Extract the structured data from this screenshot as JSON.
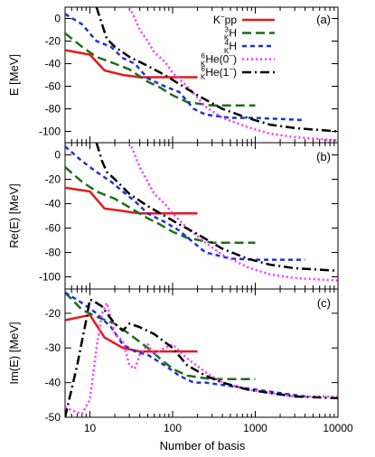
{
  "figure": {
    "xlabel": "Number of basis"
  },
  "legend": [
    {
      "name": "K",
      "sup": "−",
      "rest": "pp",
      "color": "#e41a1c",
      "dash": ""
    },
    {
      "name": "H",
      "pre": "3",
      "presub": "K",
      "color": "#1b6e1b",
      "dash": "10,5"
    },
    {
      "name": "H",
      "pre": "4",
      "presub": "K",
      "color": "#1f2fdc",
      "dash": "5,4"
    },
    {
      "name": "He(0",
      "pre": "6",
      "presub": "K",
      "sup": "−",
      "close": ")",
      "color": "#ff33ff",
      "dash": "2,3"
    },
    {
      "name": "He(1",
      "pre": "6",
      "presub": "K",
      "sup": "−",
      "close": ")",
      "color": "#000000",
      "dash": "10,4,2,4"
    }
  ],
  "chart_data": [
    {
      "type": "line",
      "panel_label": "(a)",
      "ylabel": "E [MeV]",
      "xscale": "log",
      "xlim": [
        5,
        10000
      ],
      "ylim": [
        -110,
        10
      ],
      "xticks": [
        10,
        100,
        1000,
        10000
      ],
      "yticks": [
        0,
        -20,
        -40,
        -60,
        -80,
        -100
      ],
      "series": [
        {
          "name": "K−pp",
          "color": "#e41a1c",
          "dash": "",
          "x": [
            5,
            10,
            15,
            25,
            40,
            60,
            100,
            200
          ],
          "y": [
            -28,
            -32,
            -46,
            -50,
            -52,
            -52,
            -52,
            -52
          ]
        },
        {
          "name": "3KH",
          "color": "#1b6e1b",
          "dash": "10,5",
          "x": [
            5,
            8,
            12,
            20,
            30,
            50,
            70,
            100,
            150,
            300,
            1000
          ],
          "y": [
            -13,
            -25,
            -34,
            -40,
            -45,
            -56,
            -61,
            -68,
            -74,
            -77,
            -77
          ]
        },
        {
          "name": "4KH",
          "color": "#1f2fdc",
          "dash": "5,4",
          "x": [
            5,
            8,
            12,
            18,
            25,
            35,
            50,
            80,
            120,
            180,
            250,
            500,
            1000,
            4000
          ],
          "y": [
            4,
            -5,
            -20,
            -25,
            -35,
            -40,
            -53,
            -60,
            -65,
            -80,
            -85,
            -88,
            -88,
            -90
          ]
        },
        {
          "name": "6KHe(0−)",
          "color": "#ff33ff",
          "dash": "2,3",
          "x": [
            30,
            35,
            40,
            50,
            60,
            80,
            100,
            150,
            250,
            400,
            800,
            1500,
            3000,
            10000
          ],
          "y": [
            10,
            0,
            -10,
            -20,
            -30,
            -38,
            -48,
            -60,
            -78,
            -88,
            -96,
            -102,
            -105,
            -108
          ]
        },
        {
          "name": "6KHe(1−)",
          "color": "#000000",
          "dash": "10,4,2,4",
          "x": [
            12,
            14,
            16,
            20,
            30,
            50,
            80,
            120,
            200,
            400,
            800,
            1500,
            3000,
            10000
          ],
          "y": [
            10,
            -5,
            -18,
            -25,
            -34,
            -42,
            -50,
            -58,
            -68,
            -80,
            -88,
            -94,
            -97,
            -100
          ]
        }
      ]
    },
    {
      "type": "line",
      "panel_label": "(b)",
      "ylabel": "Re(E) [MeV]",
      "xscale": "log",
      "xlim": [
        5,
        10000
      ],
      "ylim": [
        -110,
        10
      ],
      "xticks": [
        10,
        100,
        1000,
        10000
      ],
      "yticks": [
        0,
        -20,
        -40,
        -60,
        -80,
        -100
      ],
      "series": [
        {
          "name": "K−pp",
          "color": "#e41a1c",
          "dash": "",
          "x": [
            5,
            10,
            15,
            25,
            40,
            60,
            100,
            200
          ],
          "y": [
            -27,
            -30,
            -44,
            -46,
            -48,
            -48,
            -48,
            -48
          ]
        },
        {
          "name": "3KH",
          "color": "#1b6e1b",
          "dash": "10,5",
          "x": [
            5,
            8,
            12,
            20,
            30,
            50,
            70,
            100,
            150,
            300,
            1000
          ],
          "y": [
            -10,
            -22,
            -30,
            -36,
            -43,
            -52,
            -57,
            -63,
            -68,
            -72,
            -72
          ]
        },
        {
          "name": "4KH",
          "color": "#1f2fdc",
          "dash": "5,4",
          "x": [
            5,
            8,
            12,
            18,
            25,
            35,
            50,
            80,
            120,
            180,
            250,
            500,
            1000,
            4000
          ],
          "y": [
            7,
            -5,
            -14,
            -22,
            -30,
            -38,
            -48,
            -55,
            -62,
            -72,
            -80,
            -85,
            -86,
            -86
          ]
        },
        {
          "name": "6KHe(0−)",
          "color": "#ff33ff",
          "dash": "2,3",
          "x": [
            30,
            35,
            40,
            50,
            60,
            80,
            100,
            150,
            250,
            400,
            800,
            1500,
            3000,
            10000
          ],
          "y": [
            10,
            0,
            -10,
            -22,
            -32,
            -40,
            -48,
            -60,
            -72,
            -82,
            -92,
            -98,
            -101,
            -103
          ]
        },
        {
          "name": "6KHe(1−)",
          "color": "#000000",
          "dash": "10,4,2,4",
          "x": [
            12,
            14,
            16,
            20,
            30,
            50,
            80,
            120,
            200,
            400,
            800,
            1500,
            3000,
            10000
          ],
          "y": [
            10,
            -5,
            -14,
            -20,
            -32,
            -42,
            -50,
            -57,
            -65,
            -77,
            -85,
            -90,
            -93,
            -95
          ]
        }
      ]
    },
    {
      "type": "line",
      "panel_label": "(c)",
      "ylabel": "Im(E) [MeV]",
      "xscale": "log",
      "xlim": [
        5,
        10000
      ],
      "ylim": [
        -50,
        -13
      ],
      "xticks": [
        10,
        100,
        1000,
        10000
      ],
      "yticks": [
        -20,
        -30,
        -40,
        -50
      ],
      "series": [
        {
          "name": "K−pp",
          "color": "#e41a1c",
          "dash": "",
          "x": [
            5,
            10,
            15,
            25,
            40,
            60,
            100,
            200
          ],
          "y": [
            -22,
            -20.5,
            -27,
            -30,
            -31,
            -31,
            -31,
            -31
          ]
        },
        {
          "name": "3KH",
          "color": "#1b6e1b",
          "dash": "10,5",
          "x": [
            5,
            8,
            12,
            20,
            30,
            50,
            70,
            100,
            150,
            300,
            1000
          ],
          "y": [
            -14,
            -19,
            -21,
            -23,
            -26,
            -30,
            -33,
            -36,
            -38,
            -39,
            -39
          ]
        },
        {
          "name": "4KH",
          "color": "#1f2fdc",
          "dash": "5,4",
          "x": [
            5,
            8,
            12,
            18,
            25,
            35,
            50,
            80,
            120,
            180,
            250,
            500,
            1000,
            4000
          ],
          "y": [
            -14,
            -17,
            -20,
            -24,
            -29,
            -31,
            -32,
            -35,
            -38,
            -40,
            -40,
            -41,
            -42,
            -44
          ]
        },
        {
          "name": "6KHe(0−)",
          "color": "#ff33ff",
          "dash": "2,3",
          "x": [
            5,
            6,
            8,
            10,
            12,
            14,
            16,
            20,
            25,
            30,
            35,
            40,
            50,
            60,
            80,
            100,
            150,
            250,
            400,
            800,
            1500,
            3000,
            10000
          ],
          "y": [
            -47,
            -48,
            -49,
            -45,
            -30,
            -20,
            -17,
            -26,
            -28,
            -35,
            -36,
            -32,
            -29,
            -32,
            -30,
            -29,
            -33,
            -37,
            -40,
            -42,
            -43,
            -44,
            -44
          ]
        },
        {
          "name": "6KHe(1−)",
          "color": "#000000",
          "dash": "10,4,2,4",
          "x": [
            5,
            7,
            9,
            10,
            12,
            14,
            16,
            20,
            25,
            30,
            40,
            60,
            100,
            150,
            250,
            400,
            800,
            1500,
            3000,
            10000
          ],
          "y": [
            -50,
            -35,
            -22,
            -16,
            -17,
            -18,
            -20,
            -23,
            -25,
            -23,
            -24,
            -26,
            -30,
            -35,
            -38,
            -40,
            -42,
            -43,
            -44,
            -44.5
          ]
        }
      ]
    }
  ]
}
